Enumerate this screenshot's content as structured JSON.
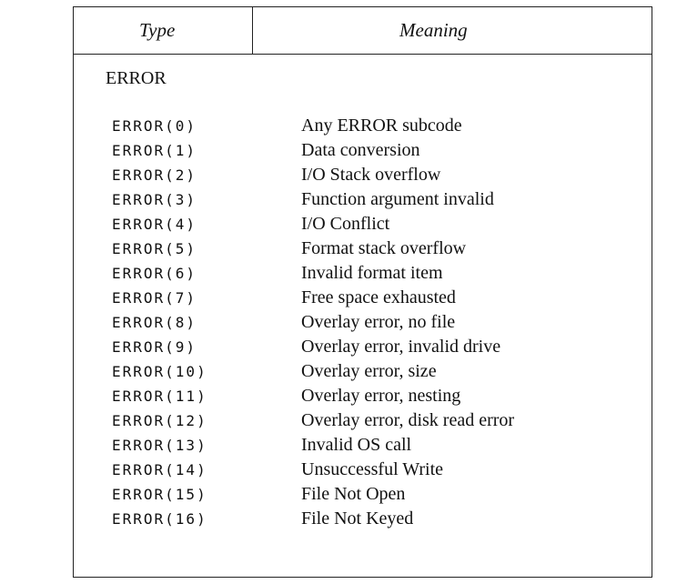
{
  "table": {
    "headers": {
      "type": "Type",
      "meaning": "Meaning"
    },
    "group_label": "ERROR",
    "rows": [
      {
        "code": "ERROR(0)",
        "meaning": "Any ERROR subcode"
      },
      {
        "code": "ERROR(1)",
        "meaning": "Data conversion"
      },
      {
        "code": "ERROR(2)",
        "meaning": "I/O Stack overflow"
      },
      {
        "code": "ERROR(3)",
        "meaning": "Function argument invalid"
      },
      {
        "code": "ERROR(4)",
        "meaning": "I/O Conflict"
      },
      {
        "code": "ERROR(5)",
        "meaning": "Format stack overflow"
      },
      {
        "code": "ERROR(6)",
        "meaning": "Invalid format item"
      },
      {
        "code": "ERROR(7)",
        "meaning": "Free space exhausted"
      },
      {
        "code": "ERROR(8)",
        "meaning": "Overlay error, no file"
      },
      {
        "code": "ERROR(9)",
        "meaning": "Overlay error, invalid drive"
      },
      {
        "code": "ERROR(10)",
        "meaning": "Overlay error, size"
      },
      {
        "code": "ERROR(11)",
        "meaning": "Overlay error, nesting"
      },
      {
        "code": "ERROR(12)",
        "meaning": "Overlay error, disk read error"
      },
      {
        "code": "ERROR(13)",
        "meaning": "Invalid OS call"
      },
      {
        "code": "ERROR(14)",
        "meaning": "Unsuccessful Write"
      },
      {
        "code": "ERROR(15)",
        "meaning": "File Not Open"
      },
      {
        "code": "ERROR(16)",
        "meaning": "File Not Keyed"
      }
    ]
  }
}
